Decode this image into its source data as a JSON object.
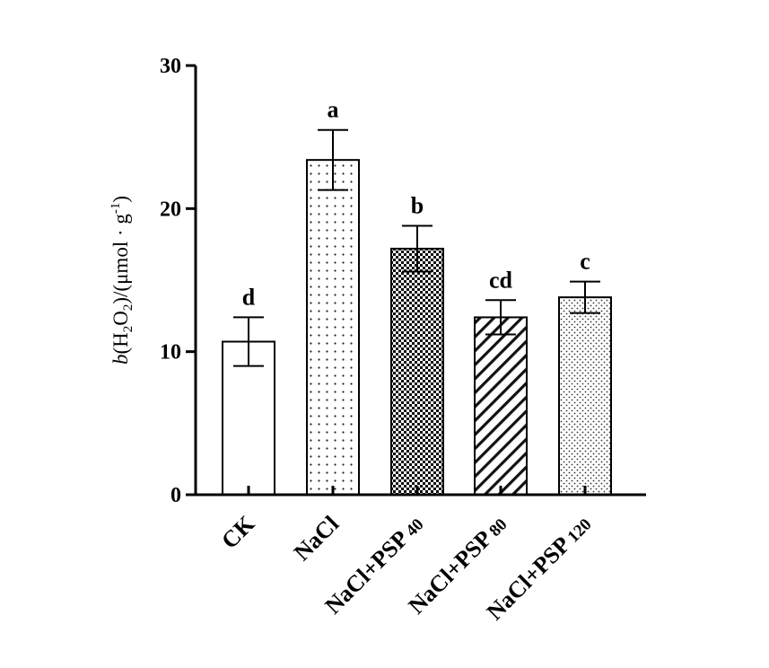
{
  "chart_data": {
    "type": "bar",
    "categories": [
      {
        "main": "CK",
        "sub": ""
      },
      {
        "main": "NaCl",
        "sub": ""
      },
      {
        "main": "NaCl+PSP",
        "sub": "40"
      },
      {
        "main": "NaCl+PSP",
        "sub": "80"
      },
      {
        "main": "NaCl+PSP",
        "sub": "120"
      }
    ],
    "values": [
      10.7,
      23.4,
      17.2,
      12.4,
      13.8
    ],
    "errors": [
      1.7,
      2.1,
      1.6,
      1.2,
      1.1
    ],
    "significance": [
      "d",
      "a",
      "b",
      "cd",
      "c"
    ],
    "patterns": [
      "none",
      "dots",
      "checker",
      "diagonal",
      "cross-dots"
    ],
    "ylim": [
      0,
      30
    ],
    "yticks": [
      "0",
      "10",
      "20",
      "30"
    ],
    "ylabel": {
      "italic": "b",
      "open1": "(",
      "h": "H",
      "h_sub": "2",
      "o": "O",
      "o_sub": "2",
      "close1": ")/(",
      "unit": "μmol · g",
      "unit_sup": "-1",
      "close2": ")"
    },
    "grid": false,
    "legend": "none"
  }
}
